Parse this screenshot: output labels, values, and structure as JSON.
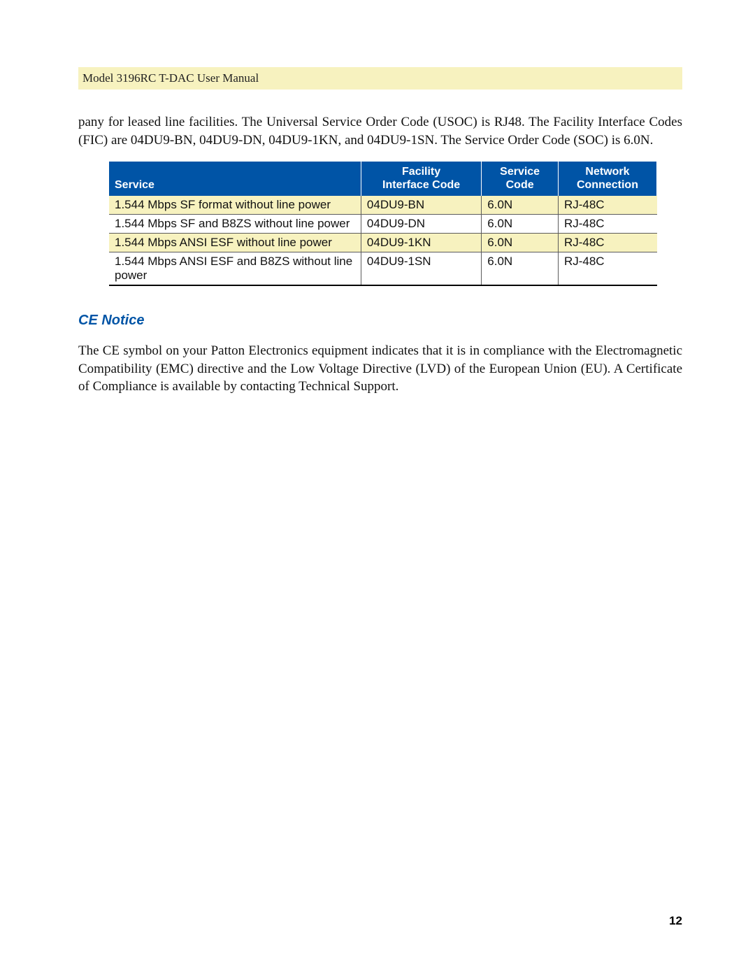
{
  "header": {
    "title": "Model 3196RC T-DAC User Manual"
  },
  "intro": "pany for leased line facilities. The Universal Service Order Code (USOC) is RJ48. The Facility Interface Codes (FIC) are 04DU9-BN, 04DU9-DN, 04DU9-1KN, and 04DU9-1SN. The Service Order Code (SOC) is 6.0N.",
  "table": {
    "columns": {
      "service": "Service",
      "fic_l1": "Facility",
      "fic_l2": "Interface Code",
      "soc_l1": "Service",
      "soc_l2": "Code",
      "net_l1": "Network",
      "net_l2": "Connection"
    },
    "rows": [
      {
        "service": "1.544 Mbps SF format without line power",
        "fic": "04DU9-BN",
        "soc": "6.0N",
        "net": "RJ-48C",
        "alt": true
      },
      {
        "service": "1.544 Mbps SF and B8ZS without line power",
        "fic": "04DU9-DN",
        "soc": "6.0N",
        "net": "RJ-48C",
        "alt": false
      },
      {
        "service": "1.544 Mbps ANSI ESF without line power",
        "fic": "04DU9-1KN",
        "soc": "6.0N",
        "net": "RJ-48C",
        "alt": true
      },
      {
        "service": "1.544 Mbps ANSI ESF and B8ZS without line power",
        "fic": "04DU9-1SN",
        "soc": "6.0N",
        "net": "RJ-48C",
        "alt": false
      }
    ]
  },
  "ce": {
    "heading": "CE Notice",
    "body": "The CE symbol on your Patton Electronics equipment indicates that it is in compliance with the Electromagnetic Compatibility (EMC) directive and the Low Voltage Directive (LVD) of the European Union (EU). A Certificate of Compliance is available by contacting Technical Support."
  },
  "page_number": "12",
  "styling": {
    "header_bg": "#f7f2bf",
    "alt_row_bg": "#f7f2bf",
    "th_bg": "#0054a6",
    "th_fg": "#ffffff",
    "accent_blue": "#0054a6",
    "body_font": "Georgia, serif",
    "ui_font": "Arial, Helvetica, sans-serif",
    "base_fontsize_pt": 14
  }
}
